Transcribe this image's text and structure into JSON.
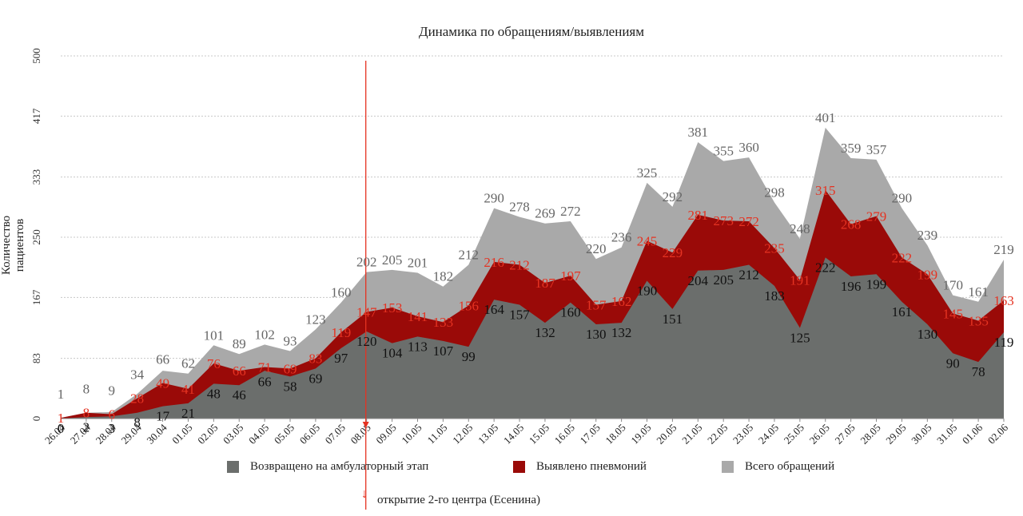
{
  "chart_data": {
    "type": "area",
    "title": "Динамика по обращениям/выявлениям",
    "xlabel": "",
    "ylabel": "Количество пациентов",
    "ylim": [
      0,
      500
    ],
    "yticks": [
      "0",
      "83",
      "167",
      "250",
      "333",
      "417",
      "500"
    ],
    "grid": true,
    "legend_position": "bottom",
    "categories": [
      "26.04",
      "27.04",
      "28.04",
      "29.04",
      "30.04",
      "01.05",
      "02.05",
      "03.05",
      "04.05",
      "05.05",
      "06.05",
      "07.05",
      "08.05",
      "09.05",
      "10.05",
      "11.05",
      "12.05",
      "13.05",
      "14.05",
      "15.05",
      "16.05",
      "17.05",
      "18.05",
      "19.05",
      "20.05",
      "21.05",
      "22.05",
      "23.05",
      "24.05",
      "25.05",
      "26.05",
      "27.05",
      "28.05",
      "29.05",
      "30.05",
      "31.05",
      "01.06",
      "02.06"
    ],
    "series": [
      {
        "name": "Возвращено на амбулаторный этап",
        "color": "#6b6e6c",
        "values": [
          0,
          2,
          3,
          8,
          17,
          21,
          48,
          46,
          66,
          58,
          69,
          97,
          120,
          104,
          113,
          107,
          99,
          164,
          157,
          132,
          160,
          130,
          132,
          190,
          151,
          204,
          205,
          212,
          183,
          125,
          222,
          196,
          199,
          161,
          130,
          90,
          78,
          119
        ]
      },
      {
        "name": "Выявлено пневмоний",
        "color": "#9a0a08",
        "values": [
          1,
          8,
          6,
          28,
          49,
          41,
          76,
          66,
          71,
          69,
          83,
          119,
          147,
          153,
          141,
          133,
          156,
          216,
          212,
          187,
          197,
          157,
          162,
          245,
          229,
          281,
          273,
          272,
          235,
          191,
          315,
          268,
          279,
          222,
          199,
          145,
          135,
          163
        ]
      },
      {
        "name": "Всего обращений",
        "color": "#a9a9a9",
        "values": [
          1,
          8,
          9,
          34,
          66,
          62,
          101,
          89,
          102,
          93,
          123,
          160,
          202,
          205,
          201,
          182,
          212,
          290,
          278,
          269,
          272,
          220,
          236,
          325,
          292,
          381,
          355,
          360,
          298,
          248,
          401,
          359,
          357,
          290,
          239,
          170,
          161,
          219
        ]
      }
    ],
    "annotation": {
      "text": "открытие 2-го центра (Есенина)",
      "x": "08.05",
      "color": "#e53322"
    }
  }
}
